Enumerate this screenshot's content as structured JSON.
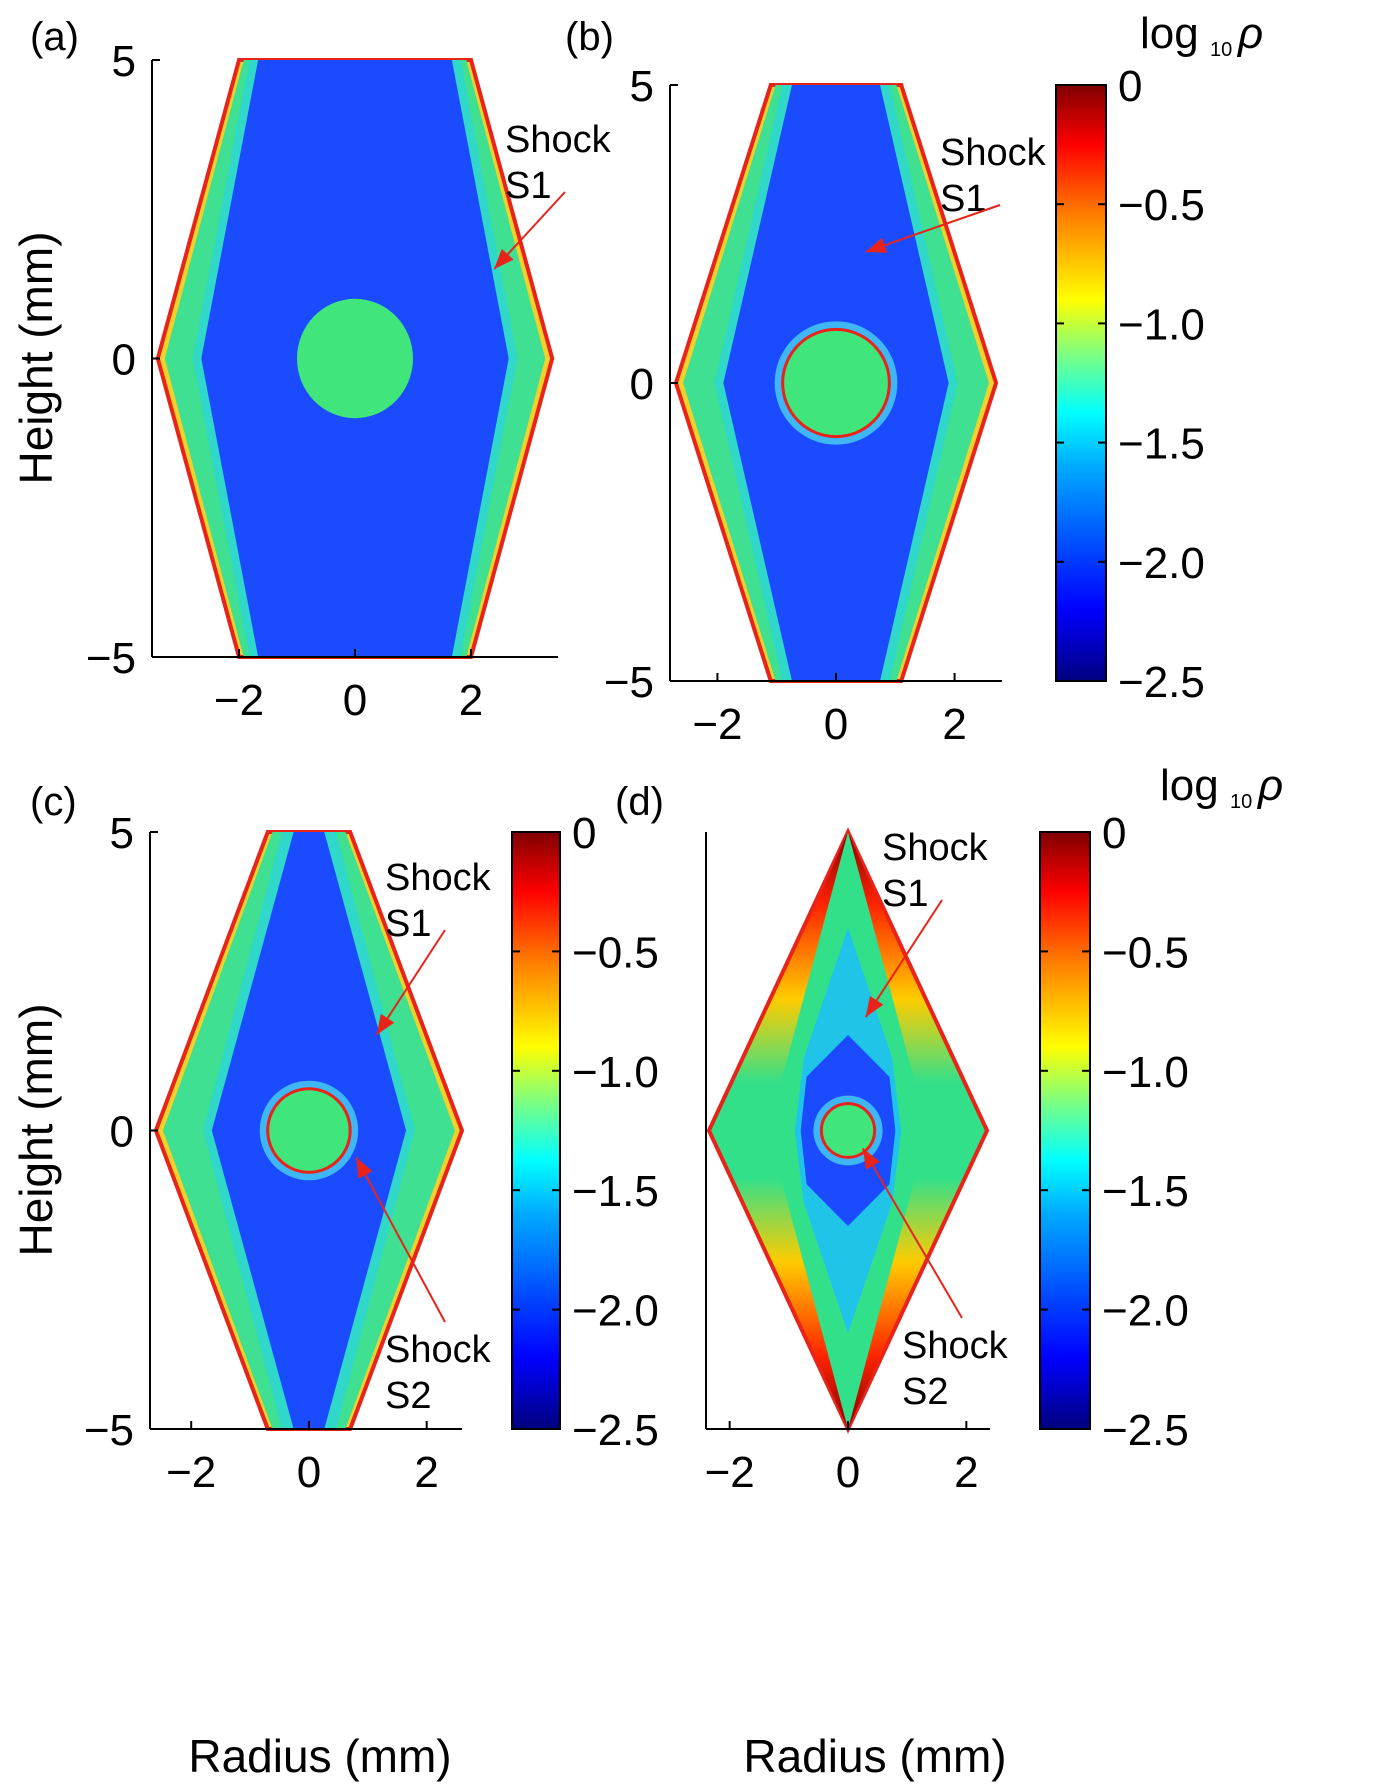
{
  "chart_data": [
    {
      "type": "heatmap",
      "panel": "(a)",
      "xlabel": "",
      "ylabel": "Height (mm)",
      "xlim": [
        -3.5,
        3.5
      ],
      "ylim": [
        -5,
        5
      ],
      "xticks": [
        "−2",
        "0",
        "2"
      ],
      "yticks": [
        "5",
        "0",
        "−5"
      ],
      "shape": {
        "half_width_top": 2.0,
        "half_width_mid": 3.4,
        "band": 0.6,
        "circle_r": 1.0,
        "ring": false
      },
      "annotations": [
        {
          "text": [
            "Shock",
            "S1"
          ],
          "target": [
            2.4,
            1.5
          ]
        }
      ]
    },
    {
      "type": "heatmap",
      "panel": "(b)",
      "xlabel": "",
      "ylabel": "",
      "xlim": [
        -2.8,
        2.8
      ],
      "ylim": [
        -5,
        5
      ],
      "xticks": [
        "−2",
        "0",
        "2"
      ],
      "yticks": [
        "5",
        "0",
        "−5"
      ],
      "shape": {
        "half_width_top": 1.1,
        "half_width_mid": 2.7,
        "band": 0.65,
        "circle_r": 0.9,
        "ring": true
      },
      "annotations": [
        {
          "text": [
            "Shock",
            "S1"
          ],
          "target": [
            0.5,
            2.2
          ]
        }
      ]
    },
    {
      "type": "heatmap",
      "panel": "(c)",
      "xlabel": "Radius (mm)",
      "ylabel": "Height (mm)",
      "xlim": [
        -2.7,
        2.6
      ],
      "ylim": [
        -5,
        5
      ],
      "xticks": [
        "−2",
        "0",
        "2"
      ],
      "yticks": [
        "5",
        "0",
        "−5"
      ],
      "shape": {
        "half_width_top": 0.7,
        "half_width_mid": 2.6,
        "band": 0.8,
        "circle_r": 0.7,
        "ring": true
      },
      "annotations": [
        {
          "text": [
            "Shock",
            "S1"
          ],
          "target": [
            1.15,
            1.6
          ]
        },
        {
          "text": [
            "Shock",
            "S2"
          ],
          "target": [
            0.8,
            -0.45
          ]
        }
      ]
    },
    {
      "type": "heatmap",
      "panel": "(d)",
      "xlabel": "Radius (mm)",
      "ylabel": "",
      "xlim": [
        -2.4,
        2.4
      ],
      "ylim": [
        -5,
        5
      ],
      "xticks": [
        "−2",
        "0",
        "2"
      ],
      "yticks": [],
      "shape": {
        "half_width_top": 0.0,
        "half_width_mid": 2.35,
        "band": 1.0,
        "circle_r": 0.45,
        "ring": true
      },
      "annotations": [
        {
          "text": [
            "Shock",
            "S1"
          ],
          "target": [
            0.3,
            1.9
          ]
        },
        {
          "text": [
            "Shock",
            "S2"
          ],
          "target": [
            0.25,
            -0.3
          ]
        }
      ]
    }
  ],
  "colorbars": [
    {
      "title": "log",
      "subscript": "10",
      "symbol": "ρ",
      "ticks": [
        "0",
        "−0.5",
        "−1.0",
        "−1.5",
        "−2.0",
        "−2.5"
      ],
      "range": [
        -2.5,
        0
      ],
      "colormap": "jet"
    },
    {
      "title": "",
      "subscript": "",
      "symbol": "",
      "ticks": [
        "0",
        "−0.5",
        "−1.0",
        "−1.5",
        "−2.0",
        "−2.5"
      ],
      "range": [
        -2.5,
        0
      ],
      "colormap": "jet"
    },
    {
      "title": "log",
      "subscript": "10",
      "symbol": "ρ",
      "ticks": [
        "0",
        "−0.5",
        "−1.0",
        "−1.5",
        "−2.0",
        "−2.5"
      ],
      "range": [
        -2.5,
        0
      ],
      "colormap": "jet"
    }
  ],
  "colors": {
    "jet": [
      "#00007f",
      "#0000ff",
      "#007fff",
      "#00ffff",
      "#7fff7f",
      "#ffff00",
      "#ff7f00",
      "#ff0000",
      "#7f0000"
    ],
    "background_blue": "#1a4bff",
    "band_green": "#33e08a",
    "core_green": "#40e67c"
  }
}
